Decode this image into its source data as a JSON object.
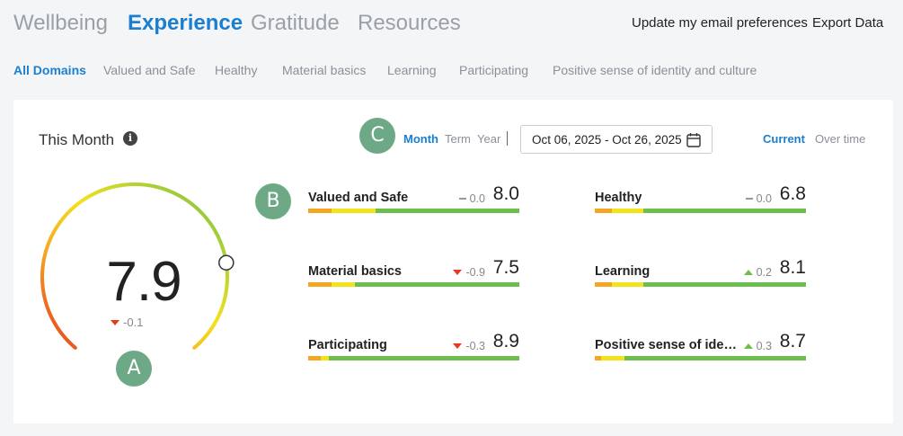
{
  "nav": {
    "tabs": [
      {
        "label": "Wellbeing",
        "active": false
      },
      {
        "label": "Experience",
        "active": true
      },
      {
        "label": "Gratitude",
        "active": false
      },
      {
        "label": "Resources",
        "active": false
      }
    ],
    "links": [
      "Update my email preferences",
      "Export Data"
    ]
  },
  "subnav": {
    "tabs": [
      {
        "label": "All Domains",
        "active": true
      },
      {
        "label": "Valued and Safe",
        "active": false
      },
      {
        "label": "Healthy",
        "active": false
      },
      {
        "label": "Material basics",
        "active": false
      },
      {
        "label": "Learning",
        "active": false
      },
      {
        "label": "Participating",
        "active": false
      },
      {
        "label": "Positive sense of identity and culture",
        "active": false
      }
    ]
  },
  "card": {
    "title": "This Month",
    "info_icon": "info-icon",
    "periods": [
      {
        "label": "Month",
        "active": true
      },
      {
        "label": "Term",
        "active": false
      },
      {
        "label": "Year",
        "active": false
      }
    ],
    "date_range": "Oct 06, 2025 - Oct 26, 2025",
    "views": [
      {
        "label": "Current",
        "active": true
      },
      {
        "label": "Over time",
        "active": false
      }
    ]
  },
  "badges": {
    "a": "A",
    "b": "B",
    "c": "C"
  },
  "gauge": {
    "value": "7.9",
    "delta": "-0.1",
    "delta_direction": "down",
    "scale_max": 10,
    "colors": {
      "low": "#e8391d",
      "mid": "#f5e11c",
      "high": "#6cc04a"
    }
  },
  "domains": [
    {
      "name": "Valued and Safe",
      "delta": "0.0",
      "direction": "flat",
      "score": "8.0"
    },
    {
      "name": "Healthy",
      "delta": "0.0",
      "direction": "flat",
      "score": "6.8"
    },
    {
      "name": "Material basics",
      "delta": "-0.9",
      "direction": "down",
      "score": "7.5"
    },
    {
      "name": "Learning",
      "delta": "0.2",
      "direction": "up",
      "score": "8.1"
    },
    {
      "name": "Participating",
      "delta": "-0.3",
      "direction": "down",
      "score": "8.9"
    },
    {
      "name": "Positive sense of ident...",
      "delta": "0.3",
      "direction": "up",
      "score": "8.7"
    }
  ],
  "bar_colors": {
    "red": "#e8391d",
    "orange": "#f5a623",
    "yellow": "#f2e31d",
    "green": "#6cbf4f"
  }
}
